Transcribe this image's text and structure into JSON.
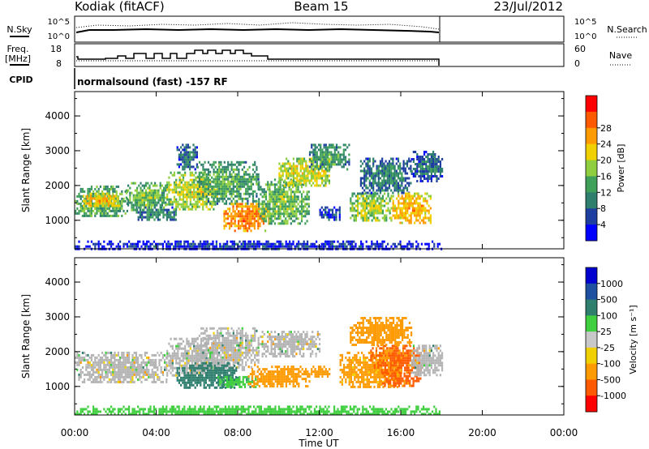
{
  "header": {
    "station": "Kodiak (fitACF)",
    "beam": "Beam 15",
    "date": "23/Jul/2012"
  },
  "panels": {
    "nsky": {
      "left_label": "N.Sky",
      "right_label": "N.Search",
      "left_ticks": [
        "10^5",
        "10^0"
      ],
      "right_ticks": [
        "10^5",
        "10^0"
      ]
    },
    "freq": {
      "left_label_1": "Freq.",
      "left_label_2": "[MHz]",
      "right_label": "Nave",
      "left_ticks": [
        "18",
        "8"
      ],
      "right_ticks": [
        "60",
        "0"
      ]
    },
    "cpid": {
      "label": "CPID",
      "text": "normalsound (fast) -157 RF"
    }
  },
  "colors": {
    "power_scale": [
      "#0000ff",
      "#1f3fa0",
      "#2f7f6f",
      "#3fa05a",
      "#8fcf3f",
      "#f0d000",
      "#ff9a00",
      "#ff5a00",
      "#ff0000"
    ],
    "velocity_scale": [
      "#ff0000",
      "#ff5a00",
      "#ff9a00",
      "#f0d000",
      "#c8c8c8",
      "#3fcf3f",
      "#2f7f6f",
      "#1f4fa0",
      "#0000cf"
    ],
    "ground_scatter": "#b4b4b4"
  },
  "chart_data": [
    {
      "type": "heatmap",
      "name": "power",
      "xlabel": "Time UT",
      "ylabel": "Slant Range [km]",
      "x_ticks": [
        "00:00",
        "04:00",
        "08:00",
        "12:00",
        "16:00",
        "20:00",
        "00:00"
      ],
      "xlim": [
        0,
        24
      ],
      "y_ticks": [
        "1000",
        "2000",
        "3000",
        "4000"
      ],
      "ylim": [
        180,
        4700
      ],
      "colorbar": {
        "label": "Power [dB]",
        "ticks": [
          "4",
          "8",
          "12",
          "16",
          "20",
          "24",
          "28"
        ],
        "range": [
          0,
          32
        ]
      },
      "data_end_hour": 18,
      "blobs": [
        {
          "t0": 0.0,
          "t1": 2.6,
          "r0": 1100,
          "r1": 2000,
          "v": 14
        },
        {
          "t0": 0.4,
          "t1": 2.2,
          "r0": 1400,
          "r1": 1800,
          "v": 22
        },
        {
          "t0": 2.5,
          "t1": 4.5,
          "r0": 1300,
          "r1": 2100,
          "v": 15
        },
        {
          "t0": 3.0,
          "t1": 5.0,
          "r0": 1000,
          "r1": 1400,
          "v": 10
        },
        {
          "t0": 4.5,
          "t1": 7.0,
          "r0": 1300,
          "r1": 2400,
          "v": 18
        },
        {
          "t0": 5.0,
          "t1": 6.0,
          "r0": 2500,
          "r1": 3200,
          "v": 8
        },
        {
          "t0": 6.0,
          "t1": 9.0,
          "r0": 1500,
          "r1": 2700,
          "v": 13
        },
        {
          "t0": 7.3,
          "t1": 9.5,
          "r0": 700,
          "r1": 1500,
          "v": 25
        },
        {
          "t0": 9.0,
          "t1": 11.5,
          "r0": 900,
          "r1": 2200,
          "v": 15
        },
        {
          "t0": 10.0,
          "t1": 12.5,
          "r0": 2000,
          "r1": 2800,
          "v": 19
        },
        {
          "t0": 11.5,
          "t1": 13.5,
          "r0": 2500,
          "r1": 3200,
          "v": 12
        },
        {
          "t0": 12.0,
          "t1": 13.0,
          "r0": 1000,
          "r1": 1400,
          "v": 6
        },
        {
          "t0": 13.5,
          "t1": 15.5,
          "r0": 1000,
          "r1": 1800,
          "v": 17
        },
        {
          "t0": 14.0,
          "t1": 16.5,
          "r0": 1800,
          "r1": 2800,
          "v": 10
        },
        {
          "t0": 15.5,
          "t1": 17.5,
          "r0": 900,
          "r1": 1800,
          "v": 22
        },
        {
          "t0": 16.5,
          "t1": 18.0,
          "r0": 2100,
          "r1": 3000,
          "v": 8
        },
        {
          "t0": 0.0,
          "t1": 18.0,
          "r0": 180,
          "r1": 420,
          "v": 5
        }
      ]
    },
    {
      "type": "heatmap",
      "name": "velocity",
      "xlabel": "Time UT",
      "ylabel": "Slant Range [km]",
      "x_ticks": [
        "00:00",
        "04:00",
        "08:00",
        "12:00",
        "16:00",
        "20:00",
        "00:00"
      ],
      "xlim": [
        0,
        24
      ],
      "y_ticks": [
        "1000",
        "2000",
        "3000",
        "4000"
      ],
      "ylim": [
        180,
        4700
      ],
      "colorbar": {
        "label": "Velocity [m s⁻¹]",
        "ticks": [
          "1000",
          "500",
          "100",
          "25",
          "-25",
          "-100",
          "-500",
          "-1000"
        ]
      },
      "data_end_hour": 18,
      "blobs": [
        {
          "t0": 0.0,
          "t1": 4.5,
          "r0": 1100,
          "r1": 2000,
          "v": 0
        },
        {
          "t0": 4.5,
          "t1": 7.0,
          "r0": 1300,
          "r1": 2400,
          "v": 0
        },
        {
          "t0": 6.0,
          "t1": 9.0,
          "r0": 1500,
          "r1": 2700,
          "v": 0
        },
        {
          "t0": 9.0,
          "t1": 12.0,
          "r0": 1900,
          "r1": 2600,
          "v": 0
        },
        {
          "t0": 5.0,
          "t1": 8.0,
          "r0": 1000,
          "r1": 1700,
          "v": 300
        },
        {
          "t0": 7.0,
          "t1": 9.0,
          "r0": 1000,
          "r1": 1300,
          "v": 80
        },
        {
          "t0": 8.5,
          "t1": 11.5,
          "r0": 1000,
          "r1": 1600,
          "v": -250
        },
        {
          "t0": 11.5,
          "t1": 12.5,
          "r0": 1300,
          "r1": 1600,
          "v": -200
        },
        {
          "t0": 13.0,
          "t1": 16.0,
          "r0": 1000,
          "r1": 2000,
          "v": -150
        },
        {
          "t0": 14.5,
          "t1": 17.0,
          "r0": 1400,
          "r1": 2200,
          "v": -600
        },
        {
          "t0": 13.5,
          "t1": 16.5,
          "r0": 2200,
          "r1": 3000,
          "v": -300
        },
        {
          "t0": 15.0,
          "t1": 17.0,
          "r0": 1000,
          "r1": 1400,
          "v": -700
        },
        {
          "t0": 16.5,
          "t1": 18.0,
          "r0": 1300,
          "r1": 2200,
          "v": 0
        },
        {
          "t0": 0.0,
          "t1": 18.0,
          "r0": 180,
          "r1": 450,
          "v": 50
        }
      ]
    }
  ]
}
